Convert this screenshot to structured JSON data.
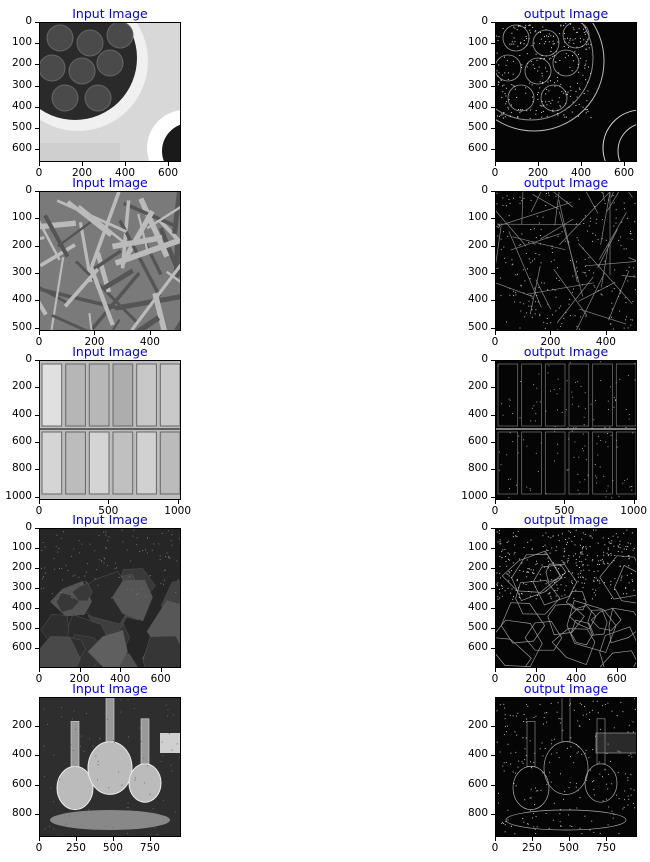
{
  "chart_data": [
    {
      "type": "image",
      "title": "Input Image",
      "xlim": [
        0,
        660
      ],
      "ylim": [
        660,
        0
      ],
      "xticks": [
        0,
        200,
        400,
        600
      ],
      "yticks": [
        0,
        100,
        200,
        300,
        400,
        500,
        600
      ],
      "scene": "fruit-bowl"
    },
    {
      "type": "image",
      "title": "output Image",
      "xlim": [
        0,
        660
      ],
      "ylim": [
        660,
        0
      ],
      "xticks": [
        0,
        200,
        400,
        600
      ],
      "yticks": [
        0,
        100,
        200,
        300,
        400,
        500,
        600
      ],
      "scene": "fruit-bowl-edges"
    },
    {
      "type": "image",
      "title": "Input Image",
      "xlim": [
        0,
        512
      ],
      "ylim": [
        512,
        0
      ],
      "xticks": [
        0,
        200,
        400
      ],
      "yticks": [
        0,
        100,
        200,
        300,
        400,
        500
      ],
      "scene": "leaves"
    },
    {
      "type": "image",
      "title": "output Image",
      "xlim": [
        0,
        512
      ],
      "ylim": [
        512,
        0
      ],
      "xticks": [
        0,
        200,
        400
      ],
      "yticks": [
        0,
        100,
        200,
        300,
        400,
        500
      ],
      "scene": "leaves-edges"
    },
    {
      "type": "image",
      "title": "Input Image",
      "xlim": [
        0,
        1024
      ],
      "ylim": [
        1024,
        0
      ],
      "xticks": [
        0,
        500,
        1000
      ],
      "yticks": [
        0,
        200,
        400,
        600,
        800,
        1000
      ],
      "scene": "glass-blocks"
    },
    {
      "type": "image",
      "title": "output Image",
      "xlim": [
        0,
        1024
      ],
      "ylim": [
        1024,
        0
      ],
      "xticks": [
        0,
        500,
        1000
      ],
      "yticks": [
        0,
        200,
        400,
        600,
        800,
        1000
      ],
      "scene": "glass-blocks-edges"
    },
    {
      "type": "image",
      "title": "Input Image",
      "xlim": [
        0,
        700
      ],
      "ylim": [
        700,
        0
      ],
      "xticks": [
        0,
        200,
        400,
        600
      ],
      "yticks": [
        0,
        100,
        200,
        300,
        400,
        500,
        600
      ],
      "scene": "rocks"
    },
    {
      "type": "image",
      "title": "output Image",
      "xlim": [
        0,
        700
      ],
      "ylim": [
        700,
        0
      ],
      "xticks": [
        0,
        200,
        400,
        600
      ],
      "yticks": [
        0,
        100,
        200,
        300,
        400,
        500,
        600
      ],
      "scene": "rocks-edges"
    },
    {
      "type": "image",
      "title": "Input Image",
      "xlim": [
        0,
        960
      ],
      "ylim": [
        960,
        0
      ],
      "xticks": [
        0,
        250,
        500,
        750
      ],
      "yticks": [
        200,
        400,
        600,
        800
      ],
      "scene": "decanters"
    },
    {
      "type": "image",
      "title": "output Image",
      "xlim": [
        0,
        960
      ],
      "ylim": [
        960,
        0
      ],
      "xticks": [
        0,
        250,
        500,
        750
      ],
      "yticks": [
        200,
        400,
        600,
        800
      ],
      "scene": "decanters-edges"
    }
  ],
  "colors": {
    "title": "#0000ff",
    "axis": "#000000"
  }
}
